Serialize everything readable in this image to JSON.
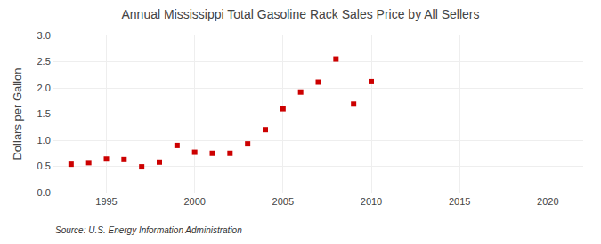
{
  "chart_data": {
    "type": "scatter",
    "title": "Annual Mississippi Total Gasoline Rack Sales Price by All Sellers",
    "ylabel": "Dollars per Gallon",
    "annotations": [
      "Source: U.S. Energy Information Administration"
    ],
    "x": [
      1993,
      1994,
      1995,
      1996,
      1997,
      1998,
      1999,
      2000,
      2001,
      2002,
      2003,
      2004,
      2005,
      2006,
      2007,
      2008,
      2009,
      2010
    ],
    "values": [
      0.54,
      0.57,
      0.64,
      0.63,
      0.49,
      0.58,
      0.9,
      0.77,
      0.75,
      0.75,
      0.93,
      1.2,
      1.6,
      1.92,
      2.11,
      2.55,
      1.69,
      2.12
    ],
    "color": "#cc0000",
    "marker": "square",
    "xlim": [
      1992,
      2022
    ],
    "ylim": [
      0.0,
      3.0
    ],
    "xticks": [
      1995,
      2000,
      2005,
      2010,
      2015,
      2020
    ],
    "yticks": [
      {
        "value": 0,
        "label": "0.0"
      },
      0.5,
      {
        "value": 1,
        "label": "1.0"
      },
      1.5,
      {
        "value": 2,
        "label": "2.0"
      },
      2.5,
      {
        "value": 3,
        "label": "3.0"
      }
    ],
    "grid": true
  }
}
